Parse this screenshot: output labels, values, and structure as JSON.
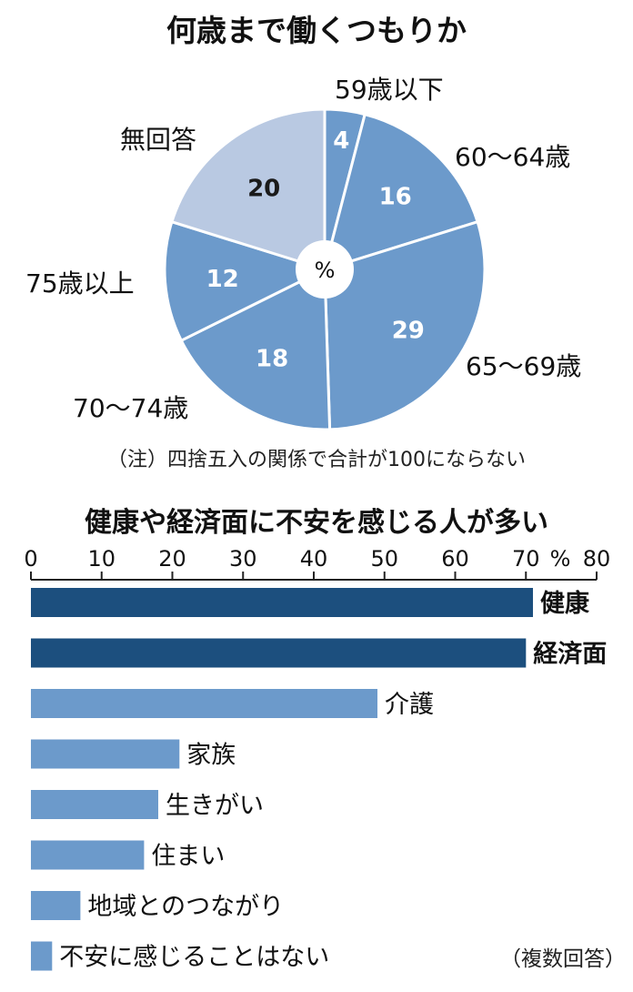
{
  "chart_data": [
    {
      "type": "pie",
      "title": "何歳まで働くつもりか",
      "center_label": "%",
      "categories": [
        "59歳以下",
        "60～64歳",
        "65～69歳",
        "70～74歳",
        "75歳以上",
        "無回答"
      ],
      "values": [
        4,
        16,
        29,
        18,
        12,
        20
      ],
      "colors": [
        "#6c9acb",
        "#6c9acb",
        "#6c9acb",
        "#6c9acb",
        "#6c9acb",
        "#b9c9e2"
      ],
      "note": "（注）四捨五入の関係で合計が100にならない"
    },
    {
      "type": "bar",
      "orientation": "horizontal",
      "title": "健康や経済面に不安を感じる人が多い",
      "xlim": [
        0,
        80
      ],
      "x_ticks": [
        0,
        10,
        20,
        30,
        40,
        50,
        60,
        70,
        80
      ],
      "x_tick_labels": [
        "0",
        "10",
        "20",
        "30",
        "40",
        "50",
        "60",
        "70",
        "80"
      ],
      "unit_label": "%",
      "categories": [
        "健康",
        "経済面",
        "介護",
        "家族",
        "生きがい",
        "住まい",
        "地域とのつながり",
        "不安に感じることはない"
      ],
      "values": [
        71,
        70,
        49,
        21,
        18,
        16,
        7,
        3
      ],
      "bold": [
        true,
        true,
        false,
        false,
        false,
        false,
        false,
        false
      ],
      "colors": [
        "#1c4f7e",
        "#1c4f7e",
        "#6c9acb",
        "#6c9acb",
        "#6c9acb",
        "#6c9acb",
        "#6c9acb",
        "#6c9acb"
      ],
      "footnote": "（複数回答）"
    }
  ]
}
